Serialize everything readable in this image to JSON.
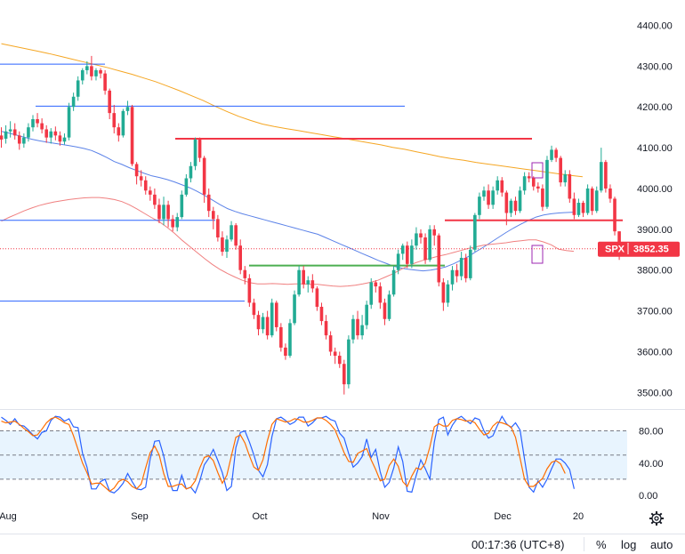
{
  "chart_data": {
    "type": "candlestick",
    "ticker": "SPX",
    "last_price": "3852.35",
    "y_ticks": [
      "4400.00",
      "4300.00",
      "4200.00",
      "4100.00",
      "4000.00",
      "3900.00",
      "3800.00",
      "3700.00",
      "3600.00",
      "3500.00"
    ],
    "osc_ticks": [
      "80.00",
      "40.00",
      "0.00"
    ],
    "x_labels": [
      "Aug",
      "Sep",
      "Oct",
      "Nov",
      "Dec",
      "20"
    ],
    "candles": [
      [
        4130,
        4120,
        4150,
        4100
      ],
      [
        4122,
        4140,
        4155,
        4110
      ],
      [
        4140,
        4145,
        4165,
        4125
      ],
      [
        4145,
        4130,
        4160,
        4120
      ],
      [
        4130,
        4110,
        4140,
        4095
      ],
      [
        4110,
        4125,
        4135,
        4100
      ],
      [
        4125,
        4150,
        4160,
        4115
      ],
      [
        4150,
        4170,
        4180,
        4140
      ],
      [
        4170,
        4160,
        4185,
        4150
      ],
      [
        4160,
        4145,
        4172,
        4135
      ],
      [
        4145,
        4125,
        4155,
        4112
      ],
      [
        4125,
        4140,
        4148,
        4110
      ],
      [
        4140,
        4130,
        4152,
        4118
      ],
      [
        4130,
        4115,
        4140,
        4105
      ],
      [
        4115,
        4125,
        4135,
        4108
      ],
      [
        4125,
        4200,
        4210,
        4118
      ],
      [
        4200,
        4225,
        4235,
        4190
      ],
      [
        4225,
        4265,
        4275,
        4215
      ],
      [
        4265,
        4290,
        4295,
        4255
      ],
      [
        4290,
        4300,
        4312,
        4280
      ],
      [
        4300,
        4275,
        4325,
        4265
      ],
      [
        4275,
        4290,
        4295,
        4265
      ],
      [
        4290,
        4282,
        4295,
        4270
      ],
      [
        4282,
        4240,
        4290,
        4230
      ],
      [
        4240,
        4185,
        4245,
        4170
      ],
      [
        4185,
        4150,
        4205,
        4135
      ],
      [
        4150,
        4130,
        4160,
        4115
      ],
      [
        4130,
        4190,
        4195,
        4125
      ],
      [
        4190,
        4200,
        4215,
        4180
      ],
      [
        4200,
        4060,
        4205,
        4055
      ],
      [
        4060,
        4030,
        4065,
        4010
      ],
      [
        4030,
        4020,
        4045,
        4005
      ],
      [
        4020,
        3995,
        4030,
        3985
      ],
      [
        3995,
        3985,
        4005,
        3970
      ],
      [
        3985,
        3960,
        4000,
        3950
      ],
      [
        3960,
        3925,
        3975,
        3915
      ],
      [
        3925,
        3960,
        3980,
        3910
      ],
      [
        3960,
        3925,
        3970,
        3905
      ],
      [
        3925,
        3905,
        3935,
        3895
      ],
      [
        3905,
        3930,
        3940,
        3895
      ],
      [
        3930,
        3985,
        3995,
        3925
      ],
      [
        3985,
        4025,
        4035,
        3980
      ],
      [
        4025,
        4055,
        4065,
        4015
      ],
      [
        4055,
        4120,
        4125,
        4045
      ],
      [
        4120,
        4075,
        4125,
        4065
      ],
      [
        4075,
        3985,
        4080,
        3965
      ],
      [
        3985,
        3945,
        4000,
        3930
      ],
      [
        3945,
        3925,
        3955,
        3900
      ],
      [
        3925,
        3880,
        3935,
        3870
      ],
      [
        3880,
        3845,
        3895,
        3835
      ],
      [
        3845,
        3875,
        3885,
        3830
      ],
      [
        3875,
        3910,
        3920,
        3870
      ],
      [
        3910,
        3860,
        3915,
        3850
      ],
      [
        3860,
        3800,
        3875,
        3790
      ],
      [
        3800,
        3780,
        3810,
        3765
      ],
      [
        3780,
        3720,
        3790,
        3710
      ],
      [
        3720,
        3690,
        3730,
        3680
      ],
      [
        3690,
        3655,
        3700,
        3640
      ],
      [
        3655,
        3685,
        3695,
        3645
      ],
      [
        3685,
        3640,
        3700,
        3630
      ],
      [
        3640,
        3720,
        3730,
        3635
      ],
      [
        3720,
        3660,
        3725,
        3650
      ],
      [
        3660,
        3610,
        3670,
        3600
      ],
      [
        3610,
        3590,
        3620,
        3580
      ],
      [
        3590,
        3670,
        3680,
        3585
      ],
      [
        3670,
        3740,
        3750,
        3665
      ],
      [
        3740,
        3800,
        3810,
        3735
      ],
      [
        3800,
        3765,
        3810,
        3755
      ],
      [
        3765,
        3775,
        3785,
        3745
      ],
      [
        3775,
        3755,
        3790,
        3745
      ],
      [
        3755,
        3710,
        3760,
        3700
      ],
      [
        3710,
        3675,
        3720,
        3665
      ],
      [
        3675,
        3640,
        3690,
        3630
      ],
      [
        3640,
        3600,
        3650,
        3590
      ],
      [
        3600,
        3590,
        3610,
        3570
      ],
      [
        3590,
        3570,
        3600,
        3560
      ],
      [
        3570,
        3520,
        3580,
        3495
      ],
      [
        3520,
        3630,
        3640,
        3510
      ],
      [
        3630,
        3680,
        3690,
        3620
      ],
      [
        3680,
        3640,
        3700,
        3630
      ],
      [
        3640,
        3665,
        3690,
        3630
      ],
      [
        3665,
        3715,
        3725,
        3655
      ],
      [
        3715,
        3770,
        3780,
        3705
      ],
      [
        3770,
        3760,
        3775,
        3745
      ],
      [
        3760,
        3720,
        3770,
        3705
      ],
      [
        3720,
        3680,
        3730,
        3665
      ],
      [
        3680,
        3740,
        3750,
        3675
      ],
      [
        3740,
        3800,
        3810,
        3735
      ],
      [
        3800,
        3840,
        3850,
        3790
      ],
      [
        3840,
        3860,
        3865,
        3825
      ],
      [
        3860,
        3815,
        3870,
        3805
      ],
      [
        3815,
        3860,
        3875,
        3805
      ],
      [
        3860,
        3890,
        3905,
        3850
      ],
      [
        3890,
        3880,
        3900,
        3865
      ],
      [
        3880,
        3825,
        3890,
        3815
      ],
      [
        3825,
        3900,
        3910,
        3820
      ],
      [
        3900,
        3885,
        3910,
        3860
      ],
      [
        3885,
        3770,
        3890,
        3760
      ],
      [
        3770,
        3720,
        3780,
        3700
      ],
      [
        3720,
        3765,
        3775,
        3710
      ],
      [
        3765,
        3800,
        3810,
        3750
      ],
      [
        3800,
        3785,
        3815,
        3770
      ],
      [
        3785,
        3830,
        3845,
        3775
      ],
      [
        3830,
        3780,
        3840,
        3770
      ],
      [
        3780,
        3850,
        3860,
        3775
      ],
      [
        3850,
        3935,
        3940,
        3845
      ],
      [
        3935,
        3980,
        3990,
        3925
      ],
      [
        3980,
        3995,
        4005,
        3970
      ],
      [
        3995,
        3960,
        4010,
        3950
      ],
      [
        3960,
        3995,
        4005,
        3950
      ],
      [
        3995,
        4020,
        4030,
        3985
      ],
      [
        4020,
        3990,
        4028,
        3980
      ],
      [
        3990,
        3940,
        3995,
        3910
      ],
      [
        3940,
        3970,
        3975,
        3930
      ],
      [
        3970,
        3945,
        3980,
        3935
      ],
      [
        3945,
        3995,
        4005,
        3940
      ],
      [
        3995,
        4030,
        4040,
        3985
      ],
      [
        4030,
        4025,
        4040,
        4015
      ],
      [
        4025,
        4005,
        4030,
        3995
      ],
      [
        4005,
        4000,
        4015,
        3990
      ],
      [
        4000,
        3955,
        4010,
        3945
      ],
      [
        3955,
        4070,
        4080,
        3950
      ],
      [
        4070,
        4095,
        4105,
        4065
      ],
      [
        4095,
        4075,
        4100,
        4065
      ],
      [
        4075,
        4015,
        4080,
        4005
      ],
      [
        4015,
        4035,
        4045,
        4005
      ],
      [
        4035,
        3975,
        4045,
        3965
      ],
      [
        3975,
        3935,
        3990,
        3925
      ],
      [
        3935,
        3965,
        3975,
        3930
      ],
      [
        3965,
        3940,
        3970,
        3930
      ],
      [
        3940,
        4000,
        4010,
        3935
      ],
      [
        4000,
        3945,
        4005,
        3935
      ],
      [
        3945,
        3995,
        4005,
        3940
      ],
      [
        3995,
        4065,
        4100,
        3990
      ],
      [
        4065,
        4000,
        4070,
        3990
      ],
      [
        4000,
        3975,
        4010,
        3965
      ],
      [
        3975,
        3895,
        3980,
        3885
      ],
      [
        3895,
        3852,
        3895,
        3825
      ]
    ],
    "series": [
      {
        "values": [
          4140,
          4136,
          4131,
          4126,
          4121,
          4117,
          4114,
          4111,
          4108,
          4105,
          4102,
          4098,
          4093,
          4085,
          4076,
          4066,
          4059,
          4051,
          4044,
          4037,
          4031,
          4027,
          4022,
          4016,
          4009,
          4002,
          3993,
          3983,
          3972,
          3961,
          3951,
          3944,
          3938,
          3933,
          3928,
          3923,
          3918,
          3913,
          3908,
          3903,
          3898,
          3893,
          3888,
          3880,
          3872,
          3864,
          3856,
          3848,
          3840,
          3832,
          3824,
          3817,
          3810,
          3805,
          3802,
          3800,
          3798,
          3800,
          3803,
          3808,
          3815,
          3824,
          3833,
          3845,
          3856,
          3868,
          3880,
          3892,
          3903,
          3913,
          3922,
          3930,
          3935,
          3938,
          3940,
          3941,
          3942
        ]
      },
      {
        "values": [
          3920,
          3929,
          3937,
          3945,
          3952,
          3958,
          3963,
          3967,
          3970,
          3973,
          3975,
          3977,
          3978,
          3978,
          3976,
          3973,
          3968,
          3960,
          3950,
          3939,
          3928,
          3918,
          3905,
          3890,
          3873,
          3858,
          3843,
          3828,
          3814,
          3802,
          3792,
          3783,
          3775,
          3769,
          3766,
          3766,
          3767,
          3766,
          3765,
          3766,
          3766,
          3765,
          3765,
          3763,
          3761,
          3760,
          3761,
          3763,
          3766,
          3770,
          3775,
          3783,
          3791,
          3801,
          3810,
          3818,
          3824,
          3829,
          3834,
          3838,
          3843,
          3848,
          3853,
          3857,
          3861,
          3863,
          3865,
          3867,
          3870,
          3872,
          3874,
          3874,
          3869,
          3862,
          3851,
          3848,
          3846
        ]
      },
      {
        "values": [
          4355,
          4349,
          4343,
          4337,
          4331,
          4324,
          4317,
          4310,
          4303,
          4296,
          4288,
          4280,
          4271,
          4262,
          4251,
          4240,
          4228,
          4216,
          4202,
          4189,
          4177,
          4167,
          4158,
          4152,
          4147,
          4142,
          4137,
          4132,
          4127,
          4122,
          4117,
          4112,
          4107,
          4101,
          4096,
          4090,
          4084,
          4078,
          4073,
          4069,
          4064,
          4060,
          4056,
          4052,
          4048,
          4044,
          4040,
          4036,
          4032,
          4029
        ]
      }
    ],
    "stoch_k": [
      97,
      93,
      88,
      95,
      87,
      86,
      81,
      75,
      70,
      78,
      80,
      93,
      98,
      97,
      92,
      95,
      85,
      84,
      52,
      35,
      8,
      8,
      17,
      20,
      5,
      3,
      8,
      15,
      27,
      17,
      8,
      7,
      10,
      45,
      67,
      68,
      49,
      22,
      6,
      6,
      25,
      8,
      10,
      3,
      18,
      38,
      46,
      57,
      43,
      28,
      6,
      11,
      59,
      78,
      80,
      66,
      50,
      31,
      23,
      38,
      73,
      95,
      97,
      93,
      88,
      91,
      97,
      97,
      86,
      90,
      96,
      96,
      98,
      94,
      92,
      77,
      71,
      52,
      35,
      40,
      48,
      70,
      47,
      57,
      29,
      10,
      16,
      34,
      60,
      42,
      5,
      4,
      25,
      44,
      33,
      20,
      66,
      94,
      97,
      75,
      87,
      95,
      98,
      93,
      89,
      96,
      94,
      80,
      71,
      74,
      87,
      98,
      89,
      84,
      90,
      81,
      45,
      10,
      4,
      18,
      10,
      20,
      33,
      45,
      45,
      40,
      32,
      8
    ],
    "stoch_d": [
      92,
      90,
      91,
      92,
      88,
      83,
      79,
      74,
      75,
      82,
      90,
      95,
      97,
      94,
      90,
      88,
      74,
      57,
      40,
      28,
      14,
      15,
      15,
      10,
      5,
      9,
      17,
      20,
      17,
      11,
      8,
      14,
      34,
      53,
      61,
      50,
      27,
      11,
      11,
      13,
      14,
      8,
      10,
      18,
      34,
      47,
      49,
      43,
      28,
      15,
      25,
      49,
      72,
      75,
      65,
      49,
      35,
      31,
      44,
      68,
      88,
      95,
      93,
      91,
      92,
      95,
      94,
      91,
      91,
      93,
      96,
      96,
      93,
      88,
      81,
      67,
      53,
      42,
      41,
      52,
      55,
      58,
      44,
      32,
      18,
      20,
      37,
      45,
      36,
      17,
      11,
      24,
      34,
      32,
      40,
      60,
      85,
      89,
      86,
      86,
      93,
      95,
      94,
      92,
      93,
      90,
      82,
      75,
      77,
      86,
      91,
      90,
      88,
      85,
      72,
      46,
      20,
      11,
      11,
      16,
      21,
      33,
      41,
      43,
      39,
      27
    ]
  },
  "footer": {
    "clock": "00:17:36 (UTC+8)",
    "percent": "%",
    "log": "log",
    "auto": "auto"
  }
}
